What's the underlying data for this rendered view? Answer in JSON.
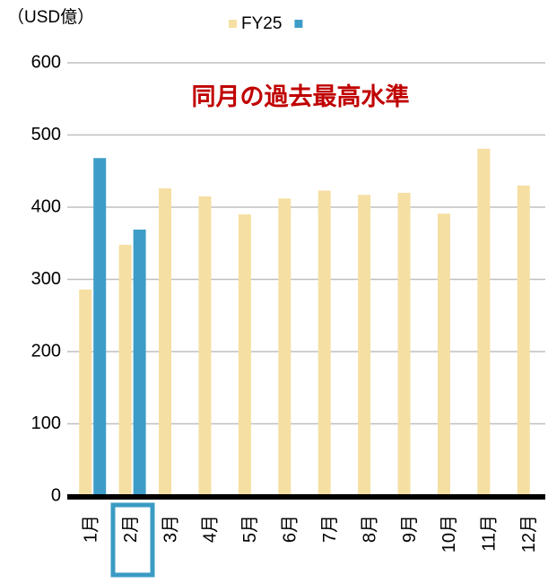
{
  "chart_data": {
    "type": "bar",
    "unit_label": "（USD億）",
    "annotation": "同月の過去最高水準",
    "categories": [
      "1月",
      "2月",
      "3月",
      "4月",
      "5月",
      "6月",
      "7月",
      "8月",
      "9月",
      "10月",
      "11月",
      "12月"
    ],
    "series": [
      {
        "name": "FY25",
        "color": "#f5dfa2",
        "values": [
          286,
          348,
          426,
          415,
          390,
          412,
          423,
          417,
          420,
          391,
          481,
          430
        ]
      },
      {
        "color": "#3d9dc8",
        "values": [
          468,
          369,
          null,
          null,
          null,
          null,
          null,
          null,
          null,
          null,
          null,
          null
        ]
      }
    ],
    "ylim": [
      0,
      600
    ],
    "yticks": [
      0,
      100,
      200,
      300,
      400,
      500,
      600
    ],
    "grid": true
  }
}
